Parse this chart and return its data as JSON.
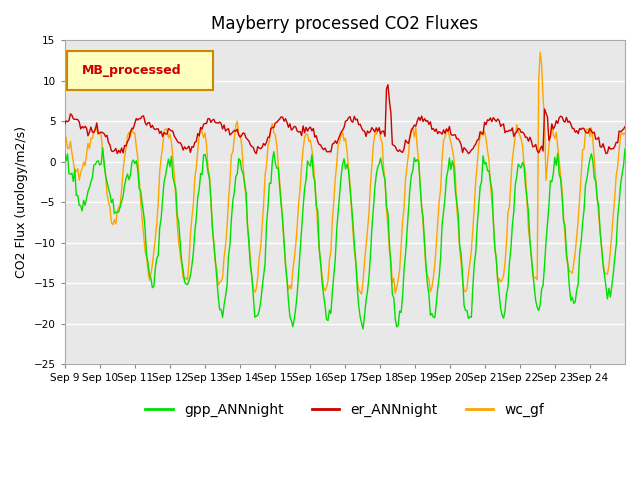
{
  "title": "Mayberry processed CO2 Fluxes",
  "ylabel": "CO2 Flux (urology/m2/s)",
  "ylim": [
    -25,
    15
  ],
  "yticks": [
    -25,
    -20,
    -15,
    -10,
    -5,
    0,
    5,
    10,
    15
  ],
  "n_days": 16,
  "xtick_labels": [
    "Sep 9",
    "Sep 10",
    "Sep 11",
    "Sep 12",
    "Sep 13",
    "Sep 14",
    "Sep 15",
    "Sep 16",
    "Sep 17",
    "Sep 18",
    "Sep 19",
    "Sep 20",
    "Sep 21",
    "Sep 22",
    "Sep 23",
    "Sep 24"
  ],
  "colors": {
    "gpp": "#00e000",
    "er": "#cc0000",
    "wc": "#ffa500"
  },
  "legend_labels": [
    "gpp_ANNnight",
    "er_ANNnight",
    "wc_gf"
  ],
  "legend_box_color": "#ffffc0",
  "legend_box_edge": "#cc8800",
  "legend_box_text": "#cc0000",
  "legend_box_label": "MB_processed",
  "axes_facecolor": "#e8e8e8",
  "fig_facecolor": "#ffffff",
  "grid_color": "#ffffff",
  "linewidth": 1.0
}
